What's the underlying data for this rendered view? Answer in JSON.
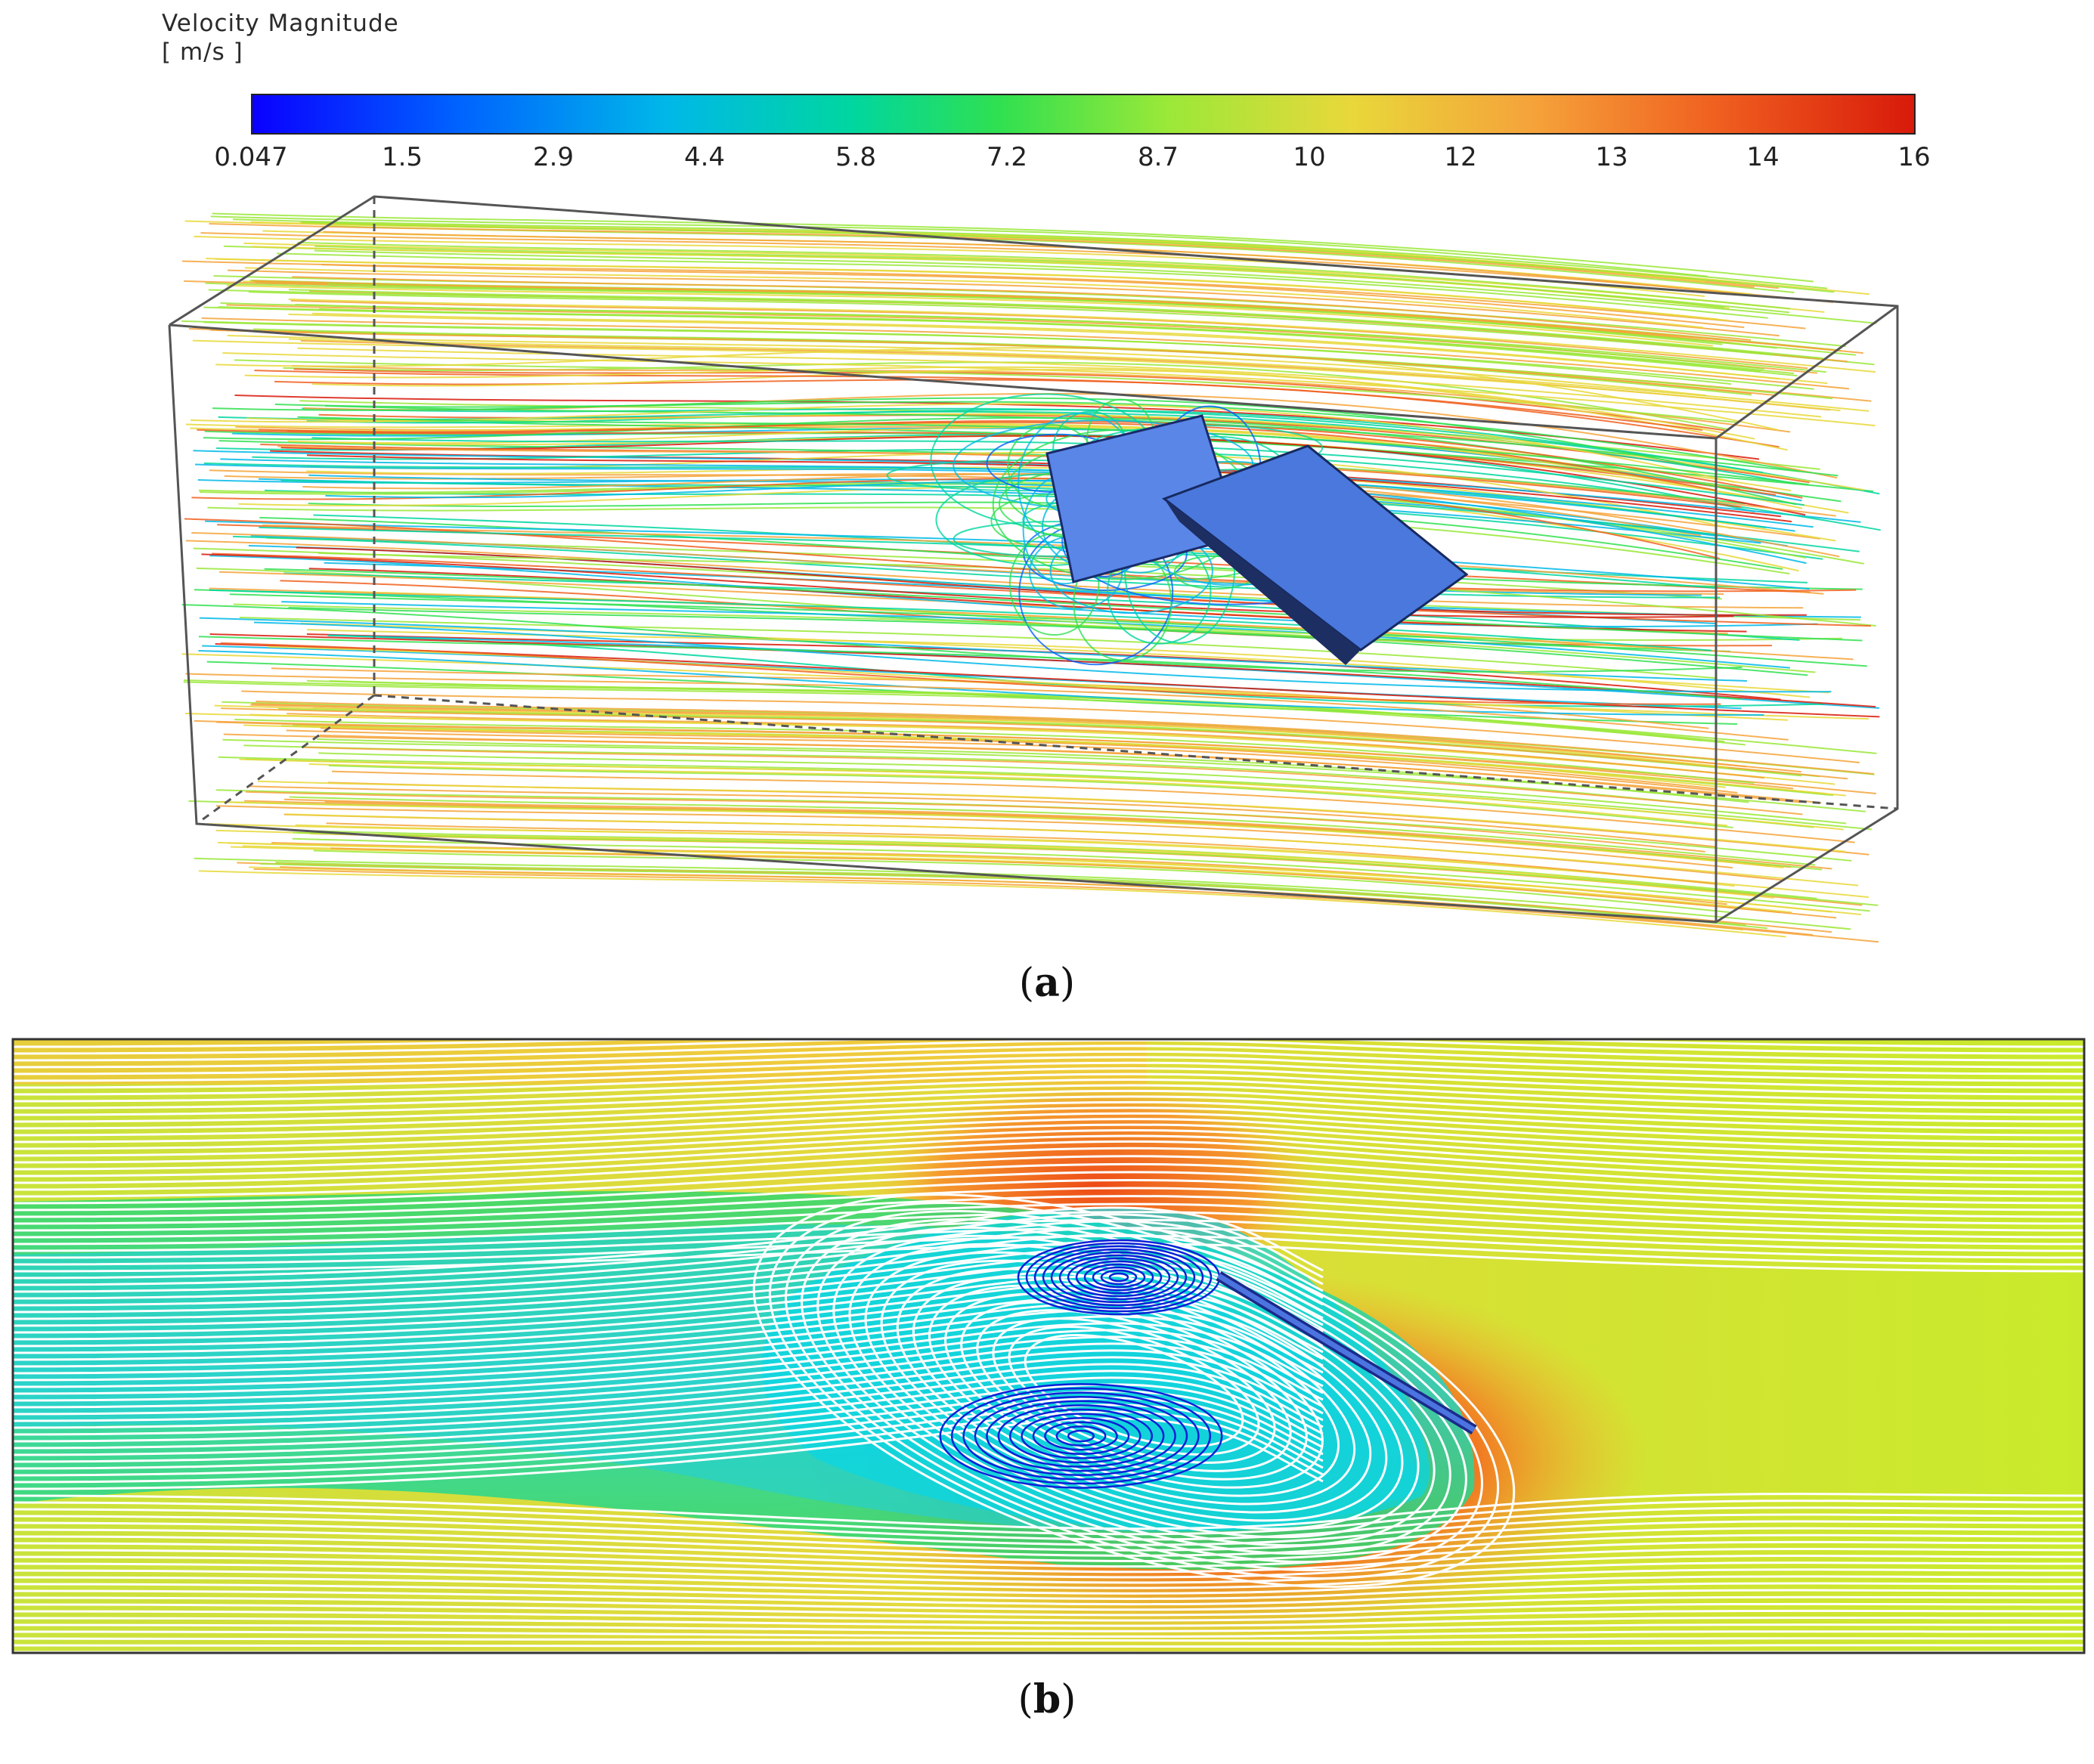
{
  "legend": {
    "title": "Velocity Magnitude",
    "unit": "[ m/s ]",
    "ticks": [
      "0.047",
      "1.5",
      "2.9",
      "4.4",
      "5.8",
      "7.2",
      "8.7",
      "10",
      "12",
      "13",
      "14",
      "16"
    ],
    "colors": [
      "#0a00ff",
      "#0060ff",
      "#00b8e8",
      "#00d6a0",
      "#30e050",
      "#9ae838",
      "#e8d83a",
      "#f5a33a",
      "#f06020",
      "#d81a0a"
    ]
  },
  "panel_a": {
    "label": "a"
  },
  "panel_b": {
    "label": "b"
  }
}
